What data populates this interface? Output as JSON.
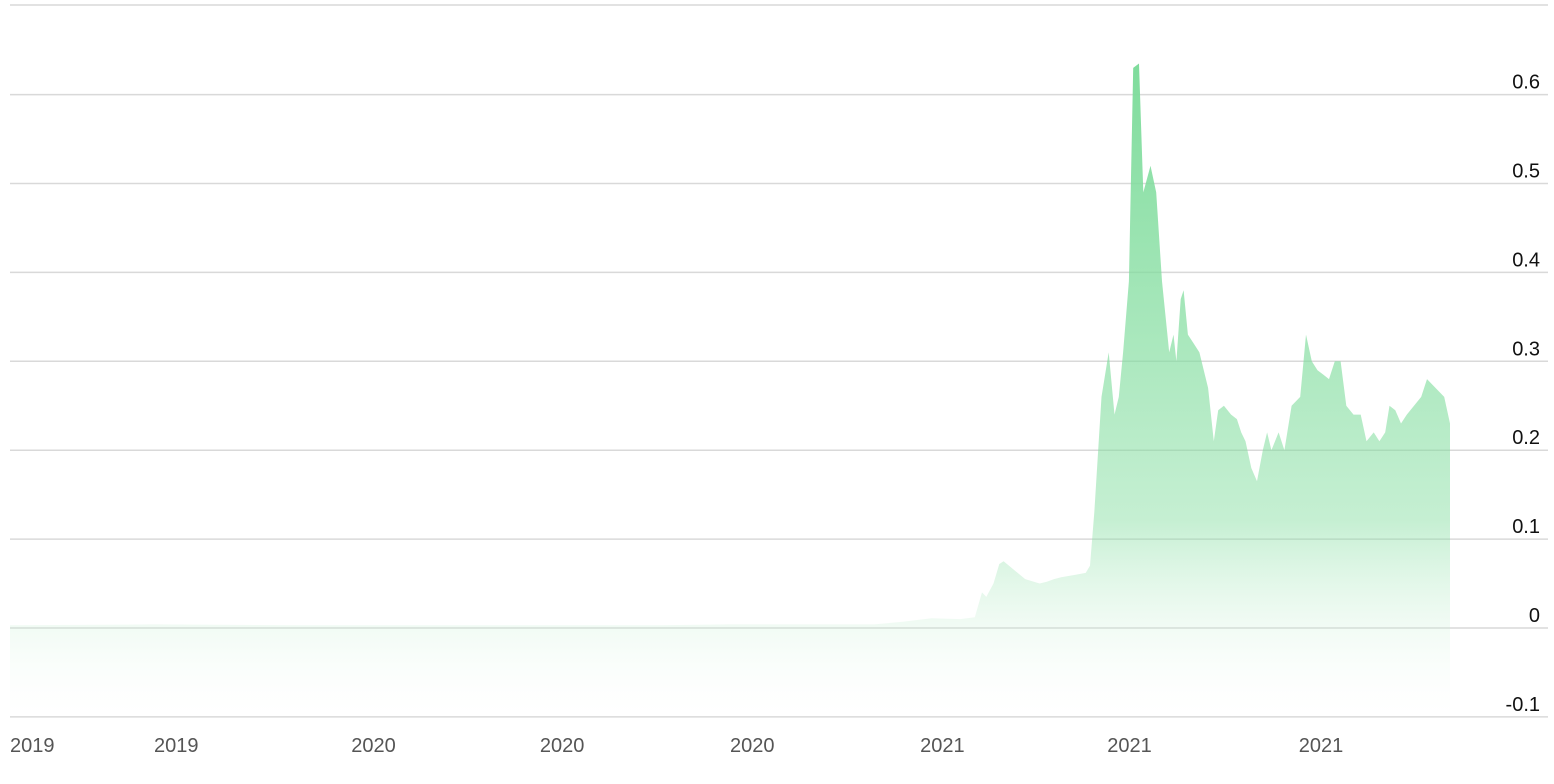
{
  "colors": {
    "fill_top": "#7fdc9c",
    "fill_bottom": "#ffffff",
    "grid": "#d9d9d9"
  },
  "chart_data": {
    "type": "area",
    "title": "",
    "xlabel": "",
    "ylabel": "",
    "ylim": [
      -0.1,
      0.7
    ],
    "grid": true,
    "legend": "none",
    "y_ticks": [
      {
        "value": 0.6,
        "label": "0.6"
      },
      {
        "value": 0.5,
        "label": "0.5"
      },
      {
        "value": 0.4,
        "label": "0.4"
      },
      {
        "value": 0.3,
        "label": "0.3"
      },
      {
        "value": 0.2,
        "label": "0.2"
      },
      {
        "value": 0.1,
        "label": "0.1"
      },
      {
        "value": 0.0,
        "label": "0"
      },
      {
        "value": -0.1,
        "label": "-0.1"
      }
    ],
    "x_ticks": [
      {
        "x": 0,
        "label": "2019"
      },
      {
        "x": 0.1,
        "label": "2019"
      },
      {
        "x": 0.237,
        "label": "2020"
      },
      {
        "x": 0.368,
        "label": "2020"
      },
      {
        "x": 0.5,
        "label": "2020"
      },
      {
        "x": 0.632,
        "label": "2021"
      },
      {
        "x": 0.762,
        "label": "2021"
      },
      {
        "x": 0.895,
        "label": "2021"
      }
    ],
    "series": [
      {
        "x": [
          0,
          0.1,
          0.2,
          0.3,
          0.45,
          0.5,
          0.6,
          0.62,
          0.64,
          0.66,
          0.67,
          0.675,
          0.678,
          0.683,
          0.687,
          0.69,
          0.705,
          0.715,
          0.72,
          0.725,
          0.73,
          0.74,
          0.747,
          0.75,
          0.753,
          0.758,
          0.763,
          0.767,
          0.77,
          0.773,
          0.777,
          0.78,
          0.784,
          0.787,
          0.792,
          0.796,
          0.8,
          0.805,
          0.808,
          0.81,
          0.813,
          0.815,
          0.818,
          0.822,
          0.826,
          0.832,
          0.836,
          0.839,
          0.843,
          0.848,
          0.852,
          0.855,
          0.858,
          0.862,
          0.866,
          0.87,
          0.873,
          0.876,
          0.881,
          0.885,
          0.89,
          0.896,
          0.9,
          0.904,
          0.908,
          0.912,
          0.916,
          0.92,
          0.924,
          0.928,
          0.933,
          0.938,
          0.942,
          0.947,
          0.951,
          0.955,
          0.958,
          0.962,
          0.966,
          0.97,
          0.975,
          0.98,
          0.984,
          0.99,
          0.996,
          1.0
        ],
        "y": [
          0.003,
          0.004,
          0.003,
          0.003,
          0.003,
          0.004,
          0.004,
          0.007,
          0.011,
          0.01,
          0.012,
          0.04,
          0.035,
          0.05,
          0.072,
          0.075,
          0.055,
          0.05,
          0.052,
          0.055,
          0.057,
          0.06,
          0.062,
          0.07,
          0.13,
          0.26,
          0.31,
          0.24,
          0.26,
          0.31,
          0.39,
          0.63,
          0.635,
          0.49,
          0.52,
          0.49,
          0.39,
          0.31,
          0.33,
          0.3,
          0.37,
          0.38,
          0.33,
          0.32,
          0.31,
          0.27,
          0.21,
          0.245,
          0.25,
          0.24,
          0.235,
          0.22,
          0.21,
          0.18,
          0.165,
          0.2,
          0.22,
          0.2,
          0.22,
          0.2,
          0.25,
          0.26,
          0.33,
          0.3,
          0.29,
          0.285,
          0.28,
          0.3,
          0.3,
          0.25,
          0.24,
          0.24,
          0.21,
          0.22,
          0.21,
          0.22,
          0.25,
          0.245,
          0.23,
          0.24,
          0.25,
          0.26,
          0.28,
          0.27,
          0.26,
          0.23
        ]
      }
    ]
  }
}
